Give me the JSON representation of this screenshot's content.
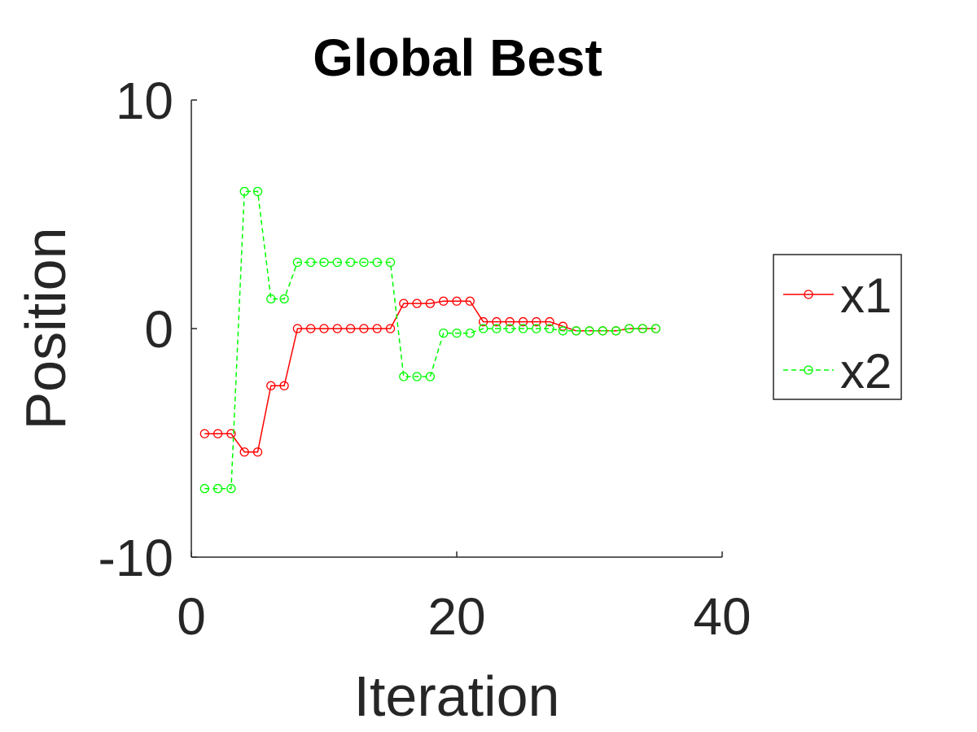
{
  "chart_data": {
    "type": "line",
    "title": "Global Best",
    "xlabel": "Iteration",
    "ylabel": "Position",
    "xlim": [
      0,
      40
    ],
    "ylim": [
      -10,
      10
    ],
    "xticks": [
      0,
      20,
      40
    ],
    "xtick_labels": [
      "0",
      "20",
      "40"
    ],
    "yticks": [
      -10,
      0,
      10
    ],
    "ytick_labels": [
      "-10",
      "0",
      "10"
    ],
    "grid": false,
    "legend_position": "right",
    "x": [
      1,
      2,
      3,
      4,
      5,
      6,
      7,
      8,
      9,
      10,
      11,
      12,
      13,
      14,
      15,
      16,
      17,
      18,
      19,
      20,
      21,
      22,
      23,
      24,
      25,
      26,
      27,
      28,
      29,
      30,
      31,
      32,
      33,
      34,
      35
    ],
    "series": [
      {
        "name": "x1",
        "color": "#ff0000",
        "line_style": "solid",
        "marker": "circle",
        "values": [
          -4.6,
          -4.6,
          -4.6,
          -5.4,
          -5.4,
          -2.5,
          -2.5,
          0,
          0,
          0,
          0,
          0,
          0,
          0,
          0,
          1.1,
          1.1,
          1.1,
          1.2,
          1.2,
          1.2,
          0.3,
          0.3,
          0.3,
          0.3,
          0.3,
          0.3,
          0.1,
          -0.1,
          -0.1,
          -0.1,
          -0.1,
          0,
          0,
          0
        ]
      },
      {
        "name": "x2",
        "color": "#00ff00",
        "line_style": "dashed",
        "marker": "circle",
        "values": [
          -7,
          -7,
          -7,
          6,
          6,
          1.3,
          1.3,
          2.9,
          2.9,
          2.9,
          2.9,
          2.9,
          2.9,
          2.9,
          2.9,
          -2.1,
          -2.1,
          -2.1,
          -0.2,
          -0.2,
          -0.2,
          0,
          0,
          0,
          0,
          0,
          0,
          -0.1,
          -0.1,
          -0.1,
          -0.1,
          -0.1,
          0,
          0,
          0
        ]
      }
    ]
  }
}
